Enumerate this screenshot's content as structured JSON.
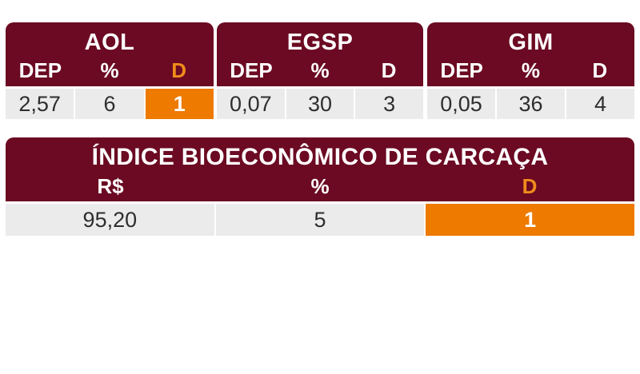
{
  "groups": [
    {
      "title": "AOL",
      "headers": [
        "DEP",
        "%",
        "D"
      ],
      "values": [
        "2,57",
        "6",
        "1"
      ]
    },
    {
      "title": "EGSP",
      "headers": [
        "DEP",
        "%",
        "D"
      ],
      "values": [
        "0,07",
        "30",
        "3"
      ]
    },
    {
      "title": "GIM",
      "headers": [
        "DEP",
        "%",
        "D"
      ],
      "values": [
        "0,05",
        "36",
        "4"
      ]
    }
  ],
  "index": {
    "title": "ÍNDICE BIOECONÔMICO DE CARCAÇA",
    "headers": [
      "R$",
      "%",
      "D"
    ],
    "values": [
      "95,20",
      "5",
      "1"
    ]
  },
  "colors": {
    "header_bg": "#6b0a22",
    "highlight_text": "#f08c1b",
    "highlight_bg": "#ee7a00",
    "cell_bg": "#ebebeb"
  }
}
